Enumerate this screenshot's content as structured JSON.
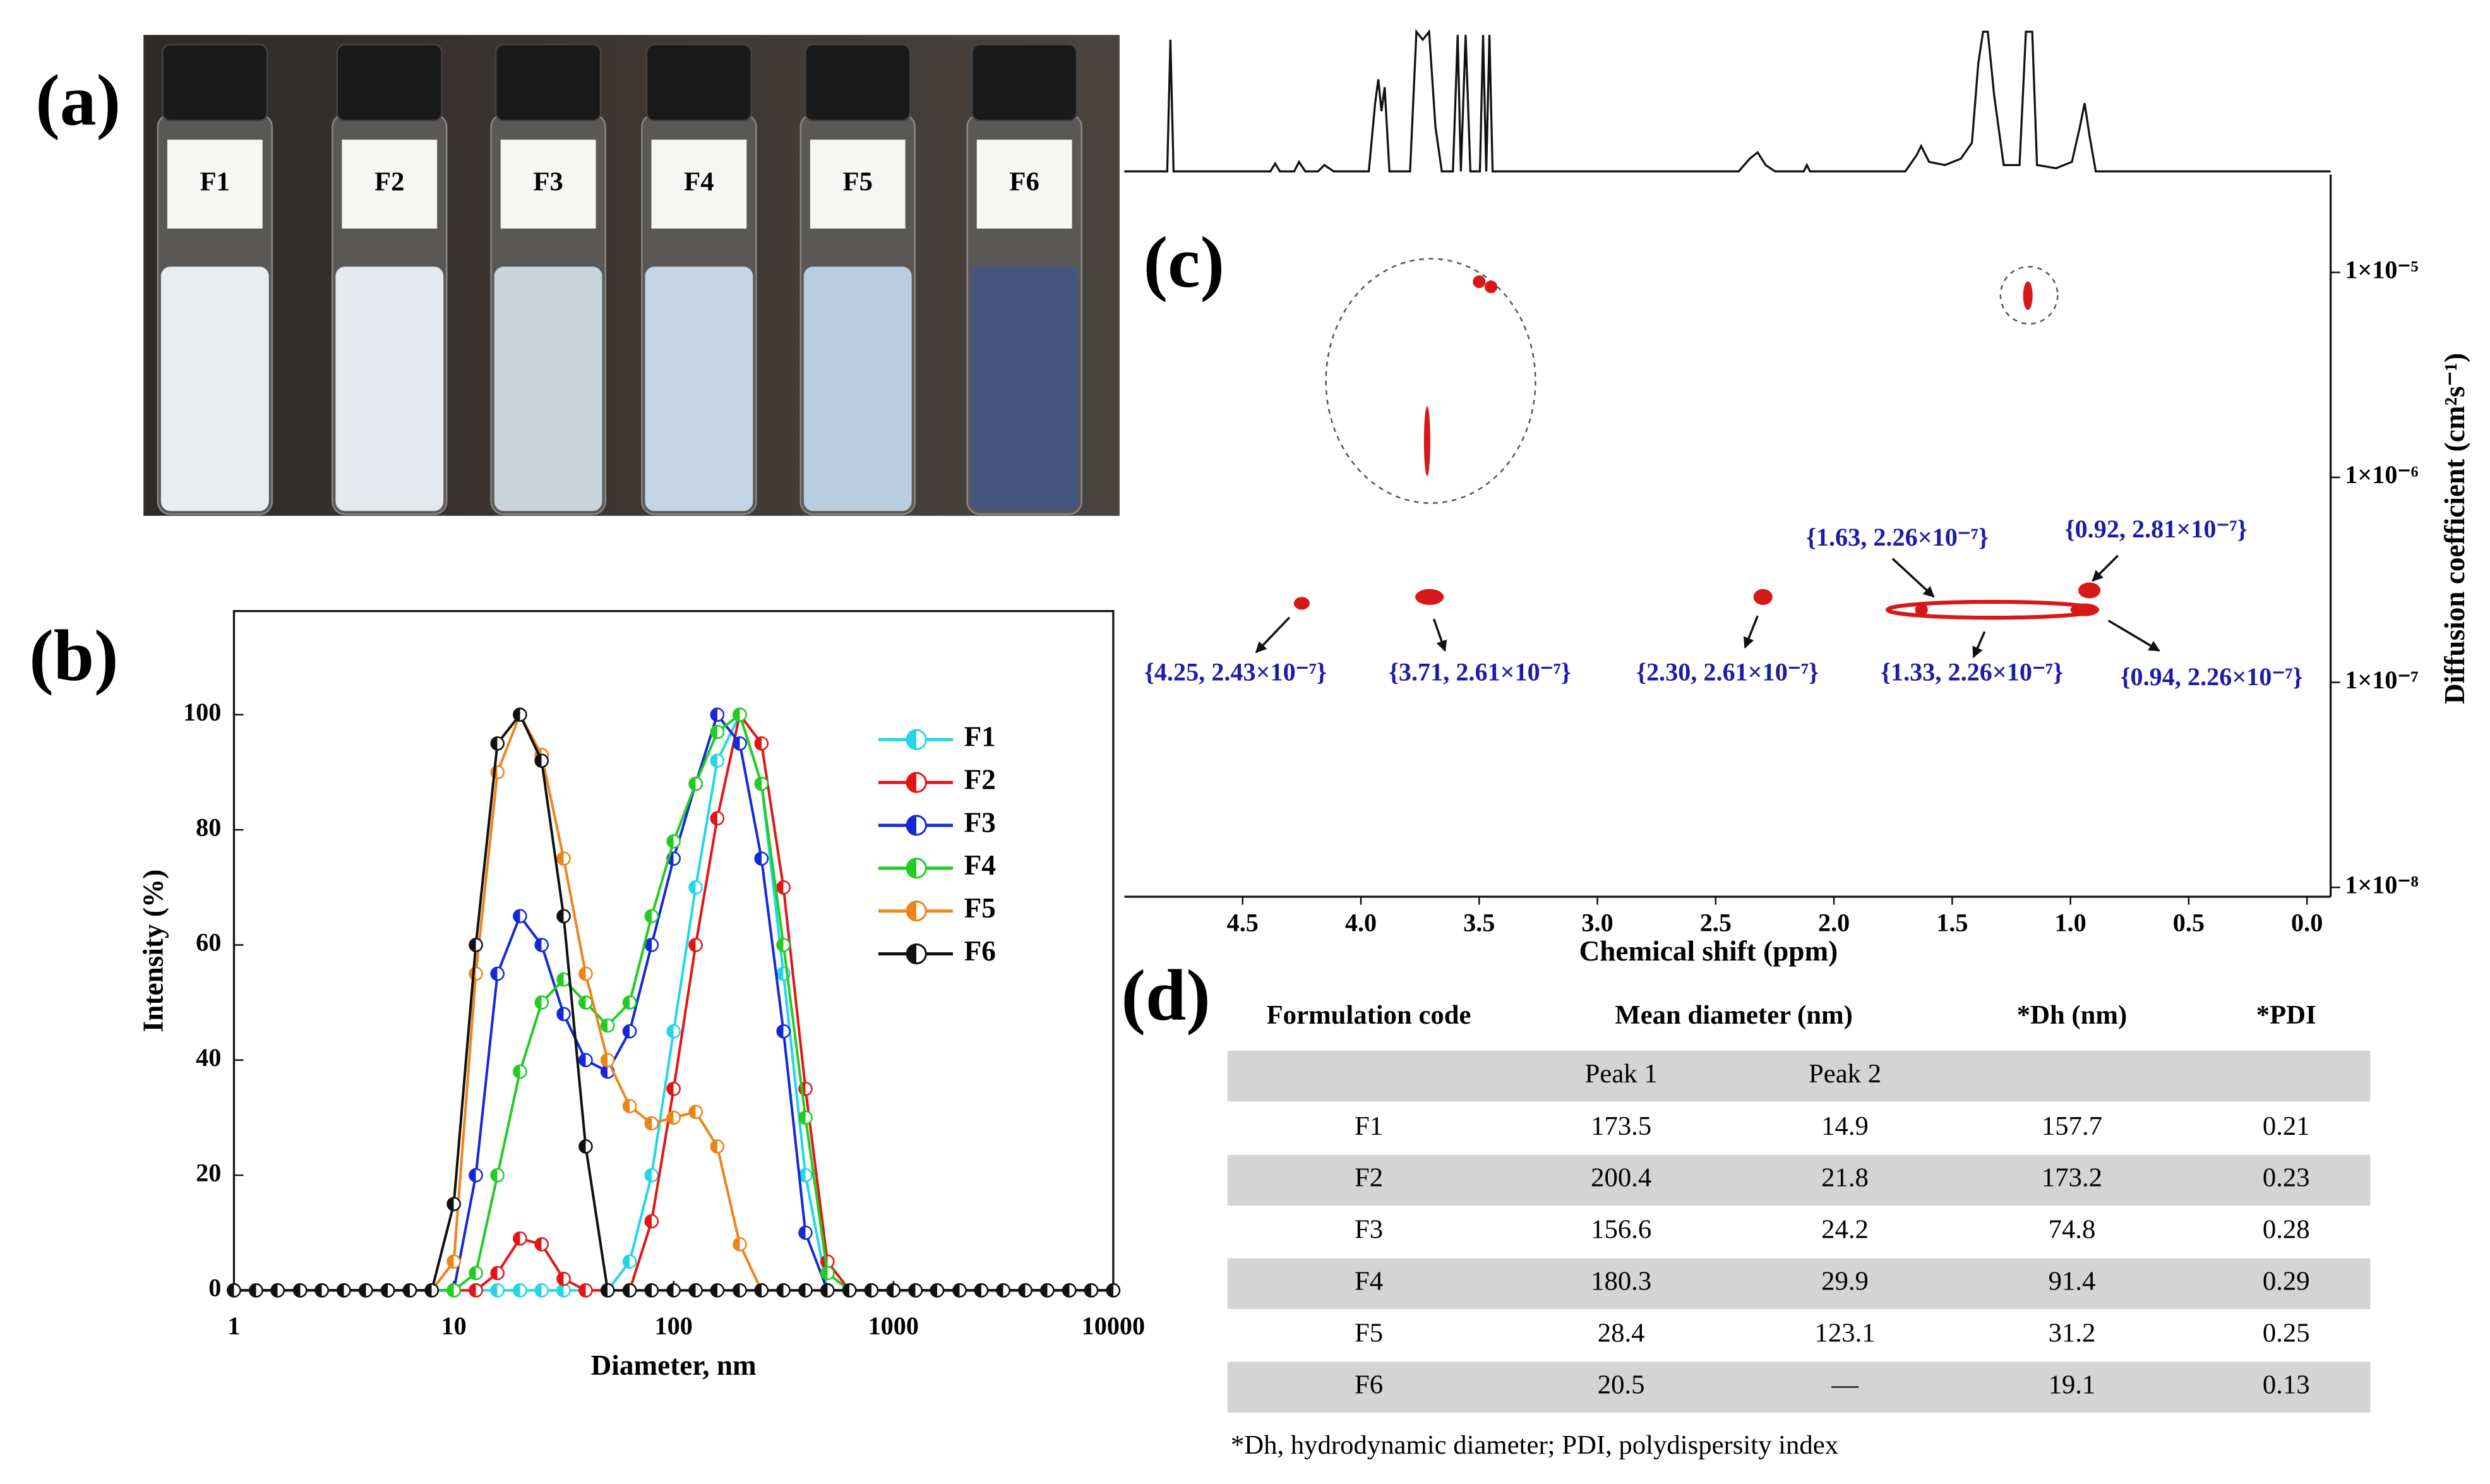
{
  "panel_labels": [
    "(a)",
    "(b)",
    "(c)",
    "(d)"
  ],
  "photo": {
    "vials": [
      "F1",
      "F2",
      "F3",
      "F4",
      "F5",
      "F6"
    ]
  },
  "chart_data": [
    {
      "type": "line",
      "xlabel": "Diameter, nm",
      "ylabel": "Intensity (%)",
      "log_x": true,
      "xlim": [
        1,
        10000
      ],
      "xticks": [
        1,
        10,
        100,
        1000,
        10000
      ],
      "ylim": [
        0,
        118
      ],
      "yticks": [
        0,
        20,
        40,
        60,
        80,
        100
      ],
      "x": [
        1,
        1.26,
        1.58,
        2,
        2.51,
        3.16,
        3.98,
        5.01,
        6.31,
        7.94,
        10,
        12.6,
        15.8,
        20,
        25.1,
        31.6,
        39.8,
        50.1,
        63.1,
        79.4,
        100,
        126,
        158,
        200,
        251,
        316,
        398,
        501,
        631,
        794,
        1000,
        1260,
        1580,
        2000,
        2510,
        3160,
        3980,
        5010,
        6310,
        7940,
        10000
      ],
      "series": [
        {
          "name": "F1",
          "color": "#22d6e8",
          "values": [
            0,
            0,
            0,
            0,
            0,
            0,
            0,
            0,
            0,
            0,
            0,
            0,
            0,
            0,
            0,
            0,
            0,
            0,
            5,
            20,
            45,
            70,
            92,
            100,
            88,
            55,
            20,
            0,
            0,
            0,
            0,
            0,
            0,
            0,
            0,
            0,
            0,
            0,
            0,
            0,
            0
          ]
        },
        {
          "name": "F2",
          "color": "#e41414",
          "values": [
            0,
            0,
            0,
            0,
            0,
            0,
            0,
            0,
            0,
            0,
            0,
            0,
            3,
            9,
            8,
            2,
            0,
            0,
            0,
            12,
            35,
            60,
            82,
            100,
            95,
            70,
            35,
            5,
            0,
            0,
            0,
            0,
            0,
            0,
            0,
            0,
            0,
            0,
            0,
            0,
            0
          ]
        },
        {
          "name": "F3",
          "color": "#1428d8",
          "values": [
            0,
            0,
            0,
            0,
            0,
            0,
            0,
            0,
            0,
            0,
            0,
            20,
            55,
            65,
            60,
            48,
            40,
            38,
            45,
            60,
            75,
            88,
            100,
            95,
            75,
            45,
            10,
            0,
            0,
            0,
            0,
            0,
            0,
            0,
            0,
            0,
            0,
            0,
            0,
            0,
            0
          ]
        },
        {
          "name": "F4",
          "color": "#22cc22",
          "values": [
            0,
            0,
            0,
            0,
            0,
            0,
            0,
            0,
            0,
            0,
            0,
            3,
            20,
            38,
            50,
            54,
            50,
            46,
            50,
            65,
            78,
            88,
            97,
            100,
            88,
            60,
            30,
            3,
            0,
            0,
            0,
            0,
            0,
            0,
            0,
            0,
            0,
            0,
            0,
            0,
            0
          ]
        },
        {
          "name": "F5",
          "color": "#ee8418",
          "values": [
            0,
            0,
            0,
            0,
            0,
            0,
            0,
            0,
            0,
            0,
            5,
            55,
            90,
            100,
            93,
            75,
            55,
            40,
            32,
            29,
            30,
            31,
            25,
            8,
            0,
            0,
            0,
            0,
            0,
            0,
            0,
            0,
            0,
            0,
            0,
            0,
            0,
            0,
            0,
            0,
            0
          ]
        },
        {
          "name": "F6",
          "color": "#111111",
          "values": [
            0,
            0,
            0,
            0,
            0,
            0,
            0,
            0,
            0,
            0,
            15,
            60,
            95,
            100,
            92,
            65,
            25,
            0,
            0,
            0,
            0,
            0,
            0,
            0,
            0,
            0,
            0,
            0,
            0,
            0,
            0,
            0,
            0,
            0,
            0,
            0,
            0,
            0,
            0,
            0,
            0
          ]
        }
      ]
    },
    {
      "type": "scatter",
      "xlabel": "Chemical shift (ppm)",
      "ylabel": "Diffusion coefficient (cm²s⁻¹)",
      "log_y": true,
      "color": "#d81818",
      "xlim": [
        5.0,
        -0.1
      ],
      "xticks": [
        4.5,
        {
          "value": 4,
          "label": "4.0"
        },
        3.5,
        {
          "value": 3,
          "label": "3.0"
        },
        2.5,
        {
          "value": 2,
          "label": "2.0"
        },
        1.5,
        {
          "value": 1,
          "label": "1.0"
        },
        0.5,
        {
          "value": 0,
          "label": "0.0"
        }
      ],
      "ylim": [
        9e-09,
        3e-05
      ],
      "yticks": [
        {
          "value": 1e-05,
          "label": "1×10⁻⁵"
        },
        {
          "value": 1e-06,
          "label": "1×10⁻⁶"
        },
        {
          "value": 1e-07,
          "label": "1×10⁻⁷"
        },
        {
          "value": 1e-08,
          "label": "1×10⁻⁸"
        }
      ],
      "series": [
        {
          "x": [
            4.25,
            3.71,
            2.3,
            1.33,
            1.63,
            0.94,
            0.92
          ],
          "values": [
            2.43e-07,
            2.61e-07,
            2.61e-07,
            2.26e-07,
            2.26e-07,
            2.26e-07,
            2.81e-07
          ],
          "value_labels": [
            "{4.25, 2.43×10⁻⁷}",
            "{3.71, 2.61×10⁻⁷}",
            "{2.30, 2.61×10⁻⁷}",
            "{1.33, 2.26×10⁻⁷}",
            "{1.63, 2.26×10⁻⁷}",
            "{0.94, 2.26×10⁻⁷}",
            "{0.92, 2.81×10⁻⁷}"
          ]
        },
        {
          "x": [
            3.5,
            3.45,
            3.72,
            1.18
          ],
          "values": [
            9e-06,
            8.5e-06,
            1.5e-06,
            7.7e-06
          ]
        }
      ]
    }
  ],
  "table": {
    "headers": [
      "Formulation code",
      "Mean diameter (nm)",
      "*Dh (nm)",
      "*PDI"
    ],
    "subheaders": [
      "Peak 1",
      "Peak 2"
    ],
    "rows": [
      [
        "F1",
        173.5,
        14.9,
        157.7,
        0.21
      ],
      [
        "F2",
        200.4,
        21.8,
        173.2,
        0.23
      ],
      [
        "F3",
        156.6,
        24.2,
        74.8,
        0.28
      ],
      [
        "F4",
        180.3,
        29.9,
        91.4,
        0.29
      ],
      [
        "F5",
        28.4,
        123.1,
        31.2,
        0.25
      ],
      [
        "F6",
        20.5,
        "—",
        19.1,
        0.13
      ]
    ],
    "footnote": "*Dh, hydrodynamic diameter; PDI, polydispersity index"
  }
}
